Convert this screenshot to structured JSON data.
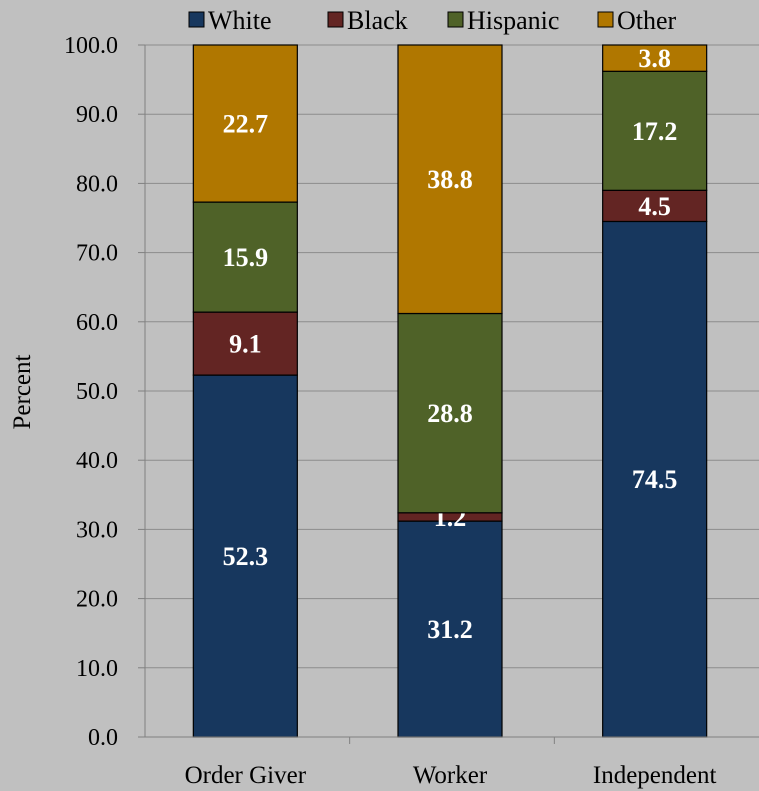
{
  "chart_data": {
    "type": "bar",
    "stacked": true,
    "title": "",
    "xlabel": "",
    "ylabel": "Percent",
    "ylim": [
      0,
      100
    ],
    "yticks": [
      "0.0",
      "10.0",
      "20.0",
      "30.0",
      "40.0",
      "50.0",
      "60.0",
      "70.0",
      "80.0",
      "90.0",
      "100.0"
    ],
    "categories": [
      "Order Giver",
      "Worker",
      "Independent"
    ],
    "series": [
      {
        "name": "White",
        "color": "#17375e",
        "values": [
          52.3,
          31.2,
          74.5
        ],
        "labels": [
          "52.3",
          "31.2",
          "74.5"
        ]
      },
      {
        "name": "Black",
        "color": "#632523",
        "values": [
          9.1,
          1.2,
          4.5
        ],
        "labels": [
          "9.1",
          "1.2",
          "4.5"
        ]
      },
      {
        "name": "Hispanic",
        "color": "#4f6228",
        "values": [
          15.9,
          28.8,
          17.2
        ],
        "labels": [
          "15.9",
          "28.8",
          "17.2"
        ]
      },
      {
        "name": "Other",
        "color": "#b07700",
        "values": [
          22.7,
          38.8,
          3.8
        ],
        "labels": [
          "22.7",
          "38.8",
          "3.8"
        ]
      }
    ],
    "grid": true,
    "grid_color": "#8c8c8c",
    "background": "#c0c0c0",
    "legend_position": "top"
  }
}
